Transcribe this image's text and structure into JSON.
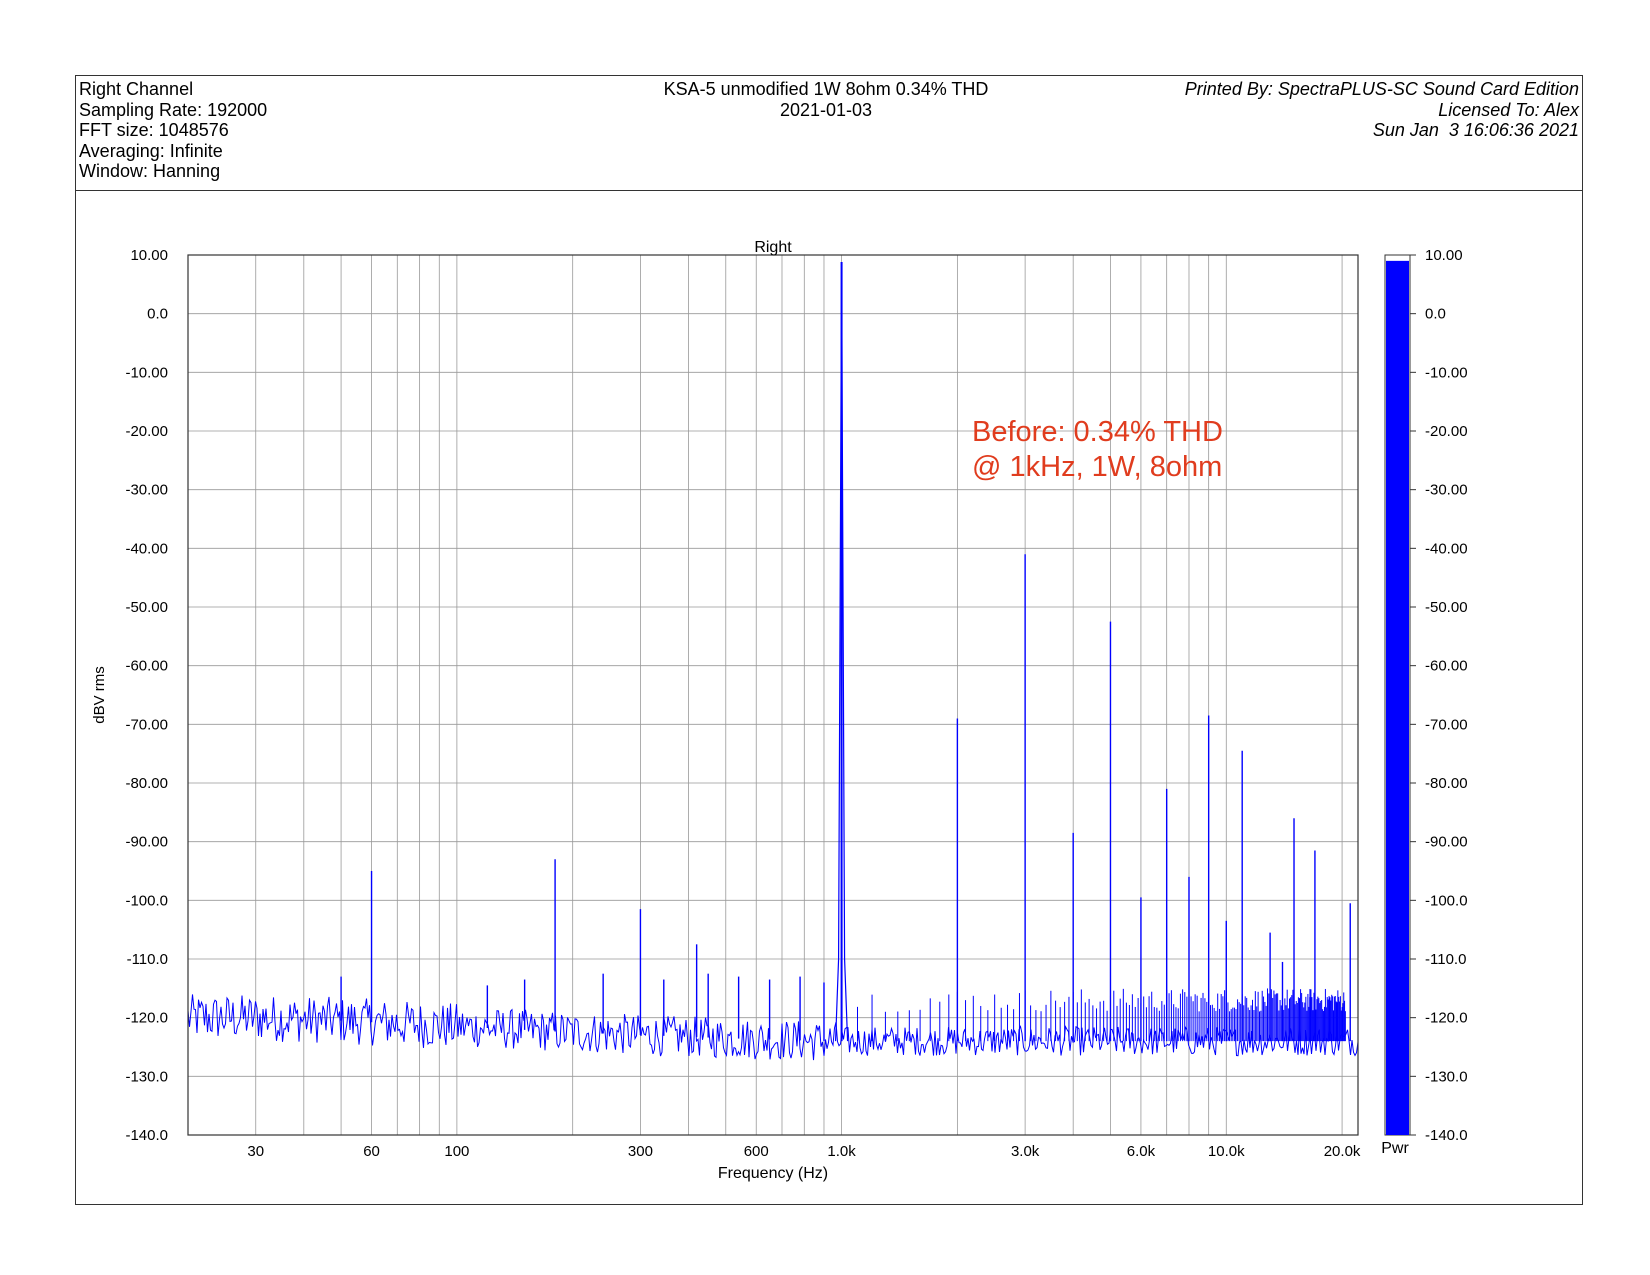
{
  "header": {
    "left": [
      "Right Channel",
      "Sampling Rate: 192000",
      "FFT size: 1048576",
      "Averaging: Infinite",
      "Window: Hanning"
    ],
    "center": [
      "KSA-5 unmodified 1W 8ohm 0.34% THD",
      "2021-01-03"
    ],
    "right": [
      "Printed By: SpectraPLUS-SC Sound Card Edition",
      "Licensed To: Alex",
      "Sun Jan  3 16:06:36 2021"
    ]
  },
  "colors": {
    "trace": "#0000ff",
    "annotation": "#e03c1e",
    "grid": "#999999"
  },
  "chart_data": {
    "type": "line",
    "title": "Right",
    "xlabel": "Frequency (Hz)",
    "ylabel": "dBV rms",
    "x_scale": "log",
    "xlim": [
      20,
      22000
    ],
    "ylim": [
      -140,
      10
    ],
    "grid": true,
    "x_ticks": [
      {
        "value": 30,
        "label": "30"
      },
      {
        "value": 60,
        "label": "60"
      },
      {
        "value": 100,
        "label": "100"
      },
      {
        "value": 300,
        "label": "300"
      },
      {
        "value": 600,
        "label": "600"
      },
      {
        "value": 1000,
        "label": "1.0k"
      },
      {
        "value": 3000,
        "label": "3.0k"
      },
      {
        "value": 6000,
        "label": "6.0k"
      },
      {
        "value": 10000,
        "label": "10.0k"
      },
      {
        "value": 20000,
        "label": "20.0k"
      }
    ],
    "y_ticks": [
      {
        "value": 10,
        "label": "10.00"
      },
      {
        "value": 0,
        "label": "0.0"
      },
      {
        "value": -10,
        "label": "-10.00"
      },
      {
        "value": -20,
        "label": "-20.00"
      },
      {
        "value": -30,
        "label": "-30.00"
      },
      {
        "value": -40,
        "label": "-40.00"
      },
      {
        "value": -50,
        "label": "-50.00"
      },
      {
        "value": -60,
        "label": "-60.00"
      },
      {
        "value": -70,
        "label": "-70.00"
      },
      {
        "value": -80,
        "label": "-80.00"
      },
      {
        "value": -90,
        "label": "-90.00"
      },
      {
        "value": -100,
        "label": "-100.0"
      },
      {
        "value": -110,
        "label": "-110.0"
      },
      {
        "value": -120,
        "label": "-120.0"
      },
      {
        "value": -130,
        "label": "-130.0"
      },
      {
        "value": -140,
        "label": "-140.0"
      }
    ],
    "noise_floor": [
      {
        "x": 20,
        "y": -120
      },
      {
        "x": 30,
        "y": -120
      },
      {
        "x": 50,
        "y": -120.5
      },
      {
        "x": 70,
        "y": -121
      },
      {
        "x": 100,
        "y": -121.5
      },
      {
        "x": 200,
        "y": -122.5
      },
      {
        "x": 500,
        "y": -123.5
      },
      {
        "x": 900,
        "y": -124
      },
      {
        "x": 1100,
        "y": -124
      },
      {
        "x": 3000,
        "y": -124
      },
      {
        "x": 10000,
        "y": -124
      },
      {
        "x": 22000,
        "y": -124
      }
    ],
    "peaks": [
      {
        "x": 50,
        "y": -113
      },
      {
        "x": 60,
        "y": -95
      },
      {
        "x": 120,
        "y": -114.5
      },
      {
        "x": 150,
        "y": -113.5
      },
      {
        "x": 180,
        "y": -93
      },
      {
        "x": 240,
        "y": -112.5
      },
      {
        "x": 300,
        "y": -101.5
      },
      {
        "x": 345,
        "y": -113.5
      },
      {
        "x": 420,
        "y": -107.5
      },
      {
        "x": 450,
        "y": -112.5
      },
      {
        "x": 540,
        "y": -113
      },
      {
        "x": 650,
        "y": -113.5
      },
      {
        "x": 780,
        "y": -113
      },
      {
        "x": 900,
        "y": -114
      },
      {
        "x": 1000,
        "y": 8.8
      },
      {
        "x": 2000,
        "y": -69
      },
      {
        "x": 3000,
        "y": -41
      },
      {
        "x": 4000,
        "y": -88.5
      },
      {
        "x": 5000,
        "y": -52.5
      },
      {
        "x": 6000,
        "y": -99.5
      },
      {
        "x": 7000,
        "y": -81
      },
      {
        "x": 8000,
        "y": -96
      },
      {
        "x": 9000,
        "y": -68.5
      },
      {
        "x": 10000,
        "y": -103.5
      },
      {
        "x": 11000,
        "y": -74.5
      },
      {
        "x": 13000,
        "y": -105.5
      },
      {
        "x": 14000,
        "y": -110.5
      },
      {
        "x": 15000,
        "y": -86
      },
      {
        "x": 16500,
        "y": -116.5
      },
      {
        "x": 17000,
        "y": -91.5
      },
      {
        "x": 21000,
        "y": -100.5
      }
    ],
    "annotation": [
      "Before: 0.34% THD",
      "@ 1kHz, 1W, 8ohm"
    ],
    "meter": {
      "label": "Pwr",
      "value": 9,
      "ylim": [
        -140,
        10
      ],
      "ticks": [
        "10.00",
        "0.0",
        "-10.00",
        "-20.00",
        "-30.00",
        "-40.00",
        "-50.00",
        "-60.00",
        "-70.00",
        "-80.00",
        "-90.00",
        "-100.0",
        "-110.0",
        "-120.0",
        "-130.0",
        "-140.0"
      ]
    }
  }
}
